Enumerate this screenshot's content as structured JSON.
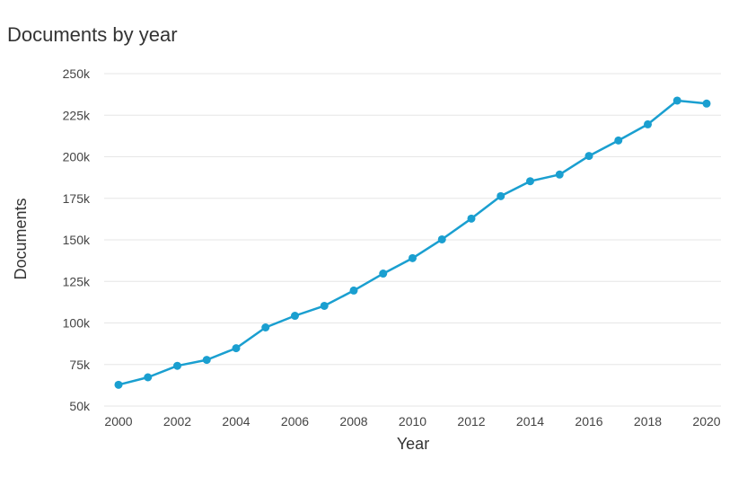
{
  "chart_data": {
    "type": "line",
    "title": "Documents by year",
    "xlabel": "Year",
    "ylabel": "Documents",
    "xlim": [
      2000,
      2020
    ],
    "ylim": [
      50000,
      250000
    ],
    "x_ticks": [
      2000,
      2002,
      2004,
      2006,
      2008,
      2010,
      2012,
      2014,
      2016,
      2018,
      2020
    ],
    "y_ticks": [
      50000,
      75000,
      100000,
      125000,
      150000,
      175000,
      200000,
      225000,
      250000
    ],
    "y_tick_labels": [
      "50k",
      "75k",
      "100k",
      "125k",
      "150k",
      "175k",
      "200k",
      "225k",
      "250k"
    ],
    "grid": "horizontal",
    "legend": "none",
    "color": "#1a9fd0",
    "x": [
      2000,
      2001,
      2002,
      2003,
      2004,
      2005,
      2006,
      2007,
      2008,
      2009,
      2010,
      2011,
      2012,
      2013,
      2014,
      2015,
      2016,
      2017,
      2018,
      2019,
      2020
    ],
    "values": [
      62800,
      67300,
      74200,
      77800,
      84800,
      97300,
      104300,
      110300,
      119500,
      129700,
      139000,
      150300,
      162800,
      176300,
      185300,
      189300,
      200500,
      209800,
      219500,
      233800,
      232000
    ]
  }
}
